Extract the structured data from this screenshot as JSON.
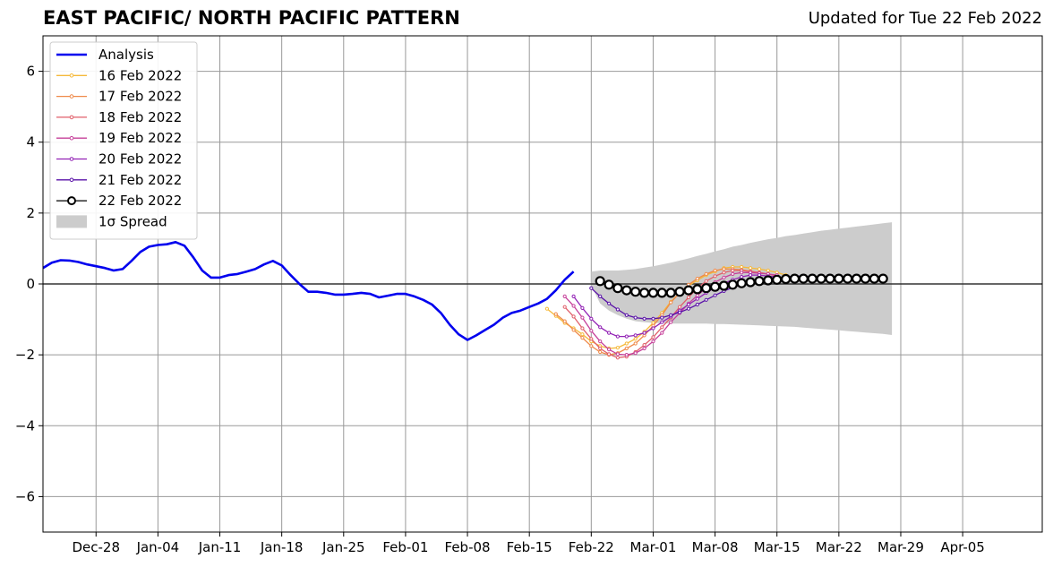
{
  "chart_data": {
    "type": "line",
    "title": "EAST PACIFIC/ NORTH PACIFIC PATTERN",
    "subtitle": "Updated for Tue 22 Feb 2022",
    "xlabel": "",
    "ylabel": "",
    "x_start": "2021-12-22",
    "x_end": "2022-04-14",
    "xticks": [
      "Dec-28",
      "Jan-04",
      "Jan-11",
      "Jan-18",
      "Jan-25",
      "Feb-01",
      "Feb-08",
      "Feb-15",
      "Feb-22",
      "Mar-01",
      "Mar-08",
      "Mar-15",
      "Mar-22",
      "Mar-29",
      "Apr-05"
    ],
    "ylim": [
      -7,
      7
    ],
    "yticks": [
      -6,
      -4,
      -2,
      0,
      2,
      4,
      6
    ],
    "ytick_labels": [
      "−6",
      "−4",
      "−2",
      "0",
      "2",
      "4",
      "6"
    ],
    "grid": true,
    "legend_position": "top-left",
    "analysis": {
      "name": "Analysis",
      "color": "#0000ee",
      "start": "2021-12-22",
      "values": [
        0.45,
        0.6,
        0.67,
        0.66,
        0.62,
        0.55,
        0.5,
        0.45,
        0.38,
        0.42,
        0.65,
        0.9,
        1.05,
        1.1,
        1.12,
        1.18,
        1.08,
        0.75,
        0.38,
        0.18,
        0.18,
        0.25,
        0.28,
        0.35,
        0.42,
        0.55,
        0.65,
        0.52,
        0.25,
        0.0,
        -0.22,
        -0.22,
        -0.25,
        -0.3,
        -0.3,
        -0.28,
        -0.25,
        -0.28,
        -0.38,
        -0.33,
        -0.28,
        -0.28,
        -0.35,
        -0.45,
        -0.58,
        -0.82,
        -1.15,
        -1.42,
        -1.58,
        -1.45,
        -1.3,
        -1.15,
        -0.95,
        -0.82,
        -0.75,
        -0.65,
        -0.55,
        -0.42,
        -0.18,
        0.12,
        0.35
      ]
    },
    "forecasts": [
      {
        "name": "16 Feb 2022",
        "color": "#f5b93a",
        "start": "2022-02-17",
        "values": [
          -0.7,
          -0.9,
          -1.1,
          -1.25,
          -1.42,
          -1.62,
          -1.75,
          -1.82,
          -1.8,
          -1.68,
          -1.55,
          -1.35,
          -1.1,
          -0.82,
          -0.5,
          -0.25,
          -0.05,
          0.1,
          0.25,
          0.35,
          0.45,
          0.48,
          0.48,
          0.45,
          0.42,
          0.38,
          0.32,
          0.25
        ]
      },
      {
        "name": "17 Feb 2022",
        "color": "#ef8a4a",
        "start": "2022-02-18",
        "values": [
          -0.85,
          -1.05,
          -1.3,
          -1.52,
          -1.75,
          -1.92,
          -2.0,
          -1.95,
          -1.82,
          -1.68,
          -1.45,
          -1.18,
          -0.88,
          -0.52,
          -0.25,
          -0.02,
          0.15,
          0.28,
          0.38,
          0.42,
          0.42,
          0.4,
          0.36,
          0.32,
          0.28
        ]
      },
      {
        "name": "18 Feb 2022",
        "color": "#e05f6a",
        "start": "2022-02-19",
        "values": [
          -0.65,
          -0.92,
          -1.25,
          -1.55,
          -1.82,
          -1.98,
          -2.08,
          -2.05,
          -1.92,
          -1.72,
          -1.5,
          -1.22,
          -0.95,
          -0.65,
          -0.38,
          -0.12,
          0.08,
          0.22,
          0.32,
          0.38,
          0.38,
          0.35,
          0.32,
          0.28,
          0.22
        ]
      },
      {
        "name": "19 Feb 2022",
        "color": "#c6409a",
        "start": "2022-02-19",
        "values": [
          -0.35,
          -0.62,
          -0.95,
          -1.32,
          -1.62,
          -1.85,
          -1.98,
          -2.0,
          -1.95,
          -1.82,
          -1.62,
          -1.38,
          -1.08,
          -0.82,
          -0.55,
          -0.32,
          -0.12,
          0.05,
          0.18,
          0.28,
          0.32,
          0.32,
          0.3,
          0.28,
          0.25
        ]
      },
      {
        "name": "20 Feb 2022",
        "color": "#9222b5",
        "start": "2022-02-20",
        "values": [
          -0.35,
          -0.68,
          -0.98,
          -1.22,
          -1.38,
          -1.48,
          -1.48,
          -1.45,
          -1.38,
          -1.25,
          -1.08,
          -0.92,
          -0.75,
          -0.58,
          -0.42,
          -0.25,
          -0.1,
          0.02,
          0.12,
          0.2,
          0.25,
          0.25,
          0.22,
          0.2
        ]
      },
      {
        "name": "21 Feb 2022",
        "color": "#5a12a8",
        "start": "2022-02-22",
        "values": [
          -0.12,
          -0.35,
          -0.55,
          -0.72,
          -0.88,
          -0.95,
          -0.98,
          -0.98,
          -0.95,
          -0.88,
          -0.8,
          -0.7,
          -0.58,
          -0.45,
          -0.32,
          -0.2,
          -0.1,
          -0.02,
          0.05,
          0.1,
          0.15,
          0.18,
          0.2,
          0.22,
          0.22,
          0.2
        ]
      },
      {
        "name": "22 Feb 2022",
        "color": "#000000",
        "start": "2022-02-23",
        "values": [
          0.08,
          -0.02,
          -0.12,
          -0.18,
          -0.22,
          -0.25,
          -0.25,
          -0.25,
          -0.25,
          -0.22,
          -0.18,
          -0.15,
          -0.12,
          -0.08,
          -0.05,
          -0.02,
          0.02,
          0.05,
          0.08,
          0.1,
          0.12,
          0.14,
          0.15,
          0.15,
          0.15,
          0.15,
          0.15,
          0.15,
          0.15,
          0.15,
          0.15,
          0.15,
          0.15
        ]
      }
    ],
    "spread": {
      "name": "1σ Spread",
      "color": "#cccccc",
      "start": "2022-02-22",
      "upper": [
        0.35,
        0.38,
        0.38,
        0.38,
        0.4,
        0.42,
        0.46,
        0.5,
        0.55,
        0.6,
        0.66,
        0.72,
        0.79,
        0.85,
        0.92,
        0.98,
        1.05,
        1.1,
        1.16,
        1.21,
        1.26,
        1.3,
        1.35,
        1.38,
        1.42,
        1.46,
        1.5,
        1.53,
        1.56,
        1.59,
        1.62,
        1.65,
        1.68,
        1.71,
        1.74
      ],
      "lower": [
        -0.05,
        -0.55,
        -0.75,
        -0.88,
        -0.98,
        -1.05,
        -1.08,
        -1.1,
        -1.11,
        -1.12,
        -1.12,
        -1.12,
        -1.12,
        -1.12,
        -1.13,
        -1.13,
        -1.14,
        -1.15,
        -1.16,
        -1.17,
        -1.18,
        -1.19,
        -1.2,
        -1.21,
        -1.23,
        -1.25,
        -1.27,
        -1.29,
        -1.31,
        -1.33,
        -1.35,
        -1.37,
        -1.39,
        -1.41,
        -1.44
      ]
    }
  }
}
